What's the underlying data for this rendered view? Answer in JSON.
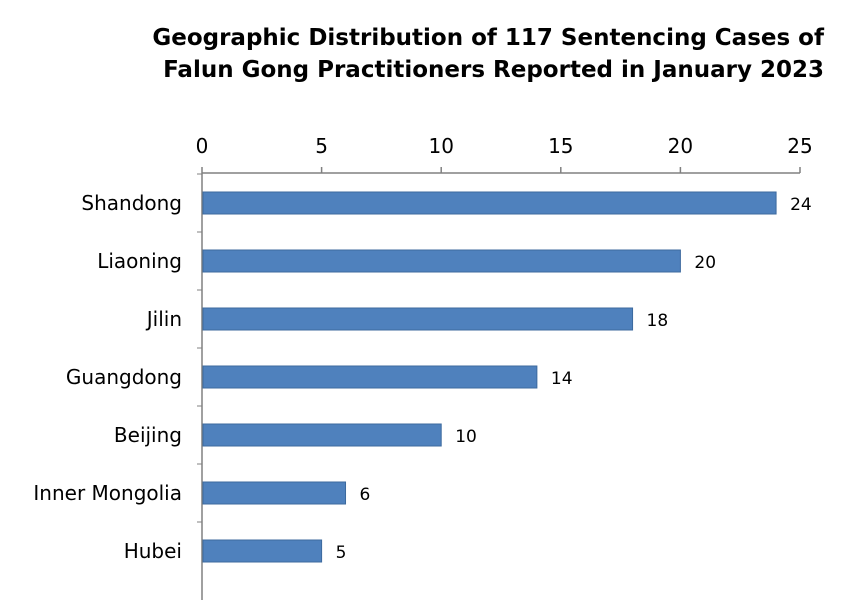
{
  "chart_data": {
    "type": "bar",
    "orientation": "horizontal",
    "title_lines": [
      "Geographic Distribution of 117 Sentencing Cases of",
      "Falun Gong Practitioners Reported in January 2023"
    ],
    "categories": [
      "Shandong",
      "Liaoning",
      "Jilin",
      "Guangdong",
      "Beijing",
      "Inner Mongolia",
      "Hubei"
    ],
    "values": [
      24,
      20,
      18,
      14,
      10,
      6,
      5
    ],
    "xlim": [
      0,
      25
    ],
    "x_ticks": [
      0,
      5,
      10,
      15,
      20,
      25
    ],
    "x_axis_position": "top",
    "data_labels": true,
    "grid": false,
    "legend": "none",
    "bar_color": "#4f81bd",
    "bar_edge_color": "#3c6a9e"
  }
}
